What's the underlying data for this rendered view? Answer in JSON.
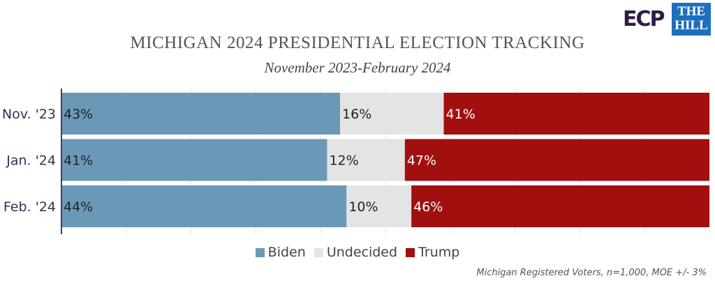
{
  "logos": {
    "ecp": "ECP",
    "the_hill": "THE HILL"
  },
  "chart_data": {
    "type": "bar",
    "orientation": "horizontal",
    "stacked": true,
    "title": "MICHIGAN 2024 PRESIDENTIAL ELECTION TRACKING",
    "subtitle": "November 2023-February 2024",
    "categories": [
      "Nov. '23",
      "Jan. '24",
      "Feb. '24"
    ],
    "series": [
      {
        "name": "Biden",
        "values": [
          43,
          41,
          44
        ],
        "color": "#6a99b8"
      },
      {
        "name": "Undecided",
        "values": [
          16,
          12,
          10
        ],
        "color": "#e4e4e4"
      },
      {
        "name": "Trump",
        "values": [
          41,
          47,
          46
        ],
        "color": "#a20f0f"
      }
    ],
    "xlim": [
      0,
      100
    ],
    "grid": true,
    "legend": "bottom",
    "note": "Michigan Registered Voters, n=1,000, MOE +/- 3%"
  }
}
